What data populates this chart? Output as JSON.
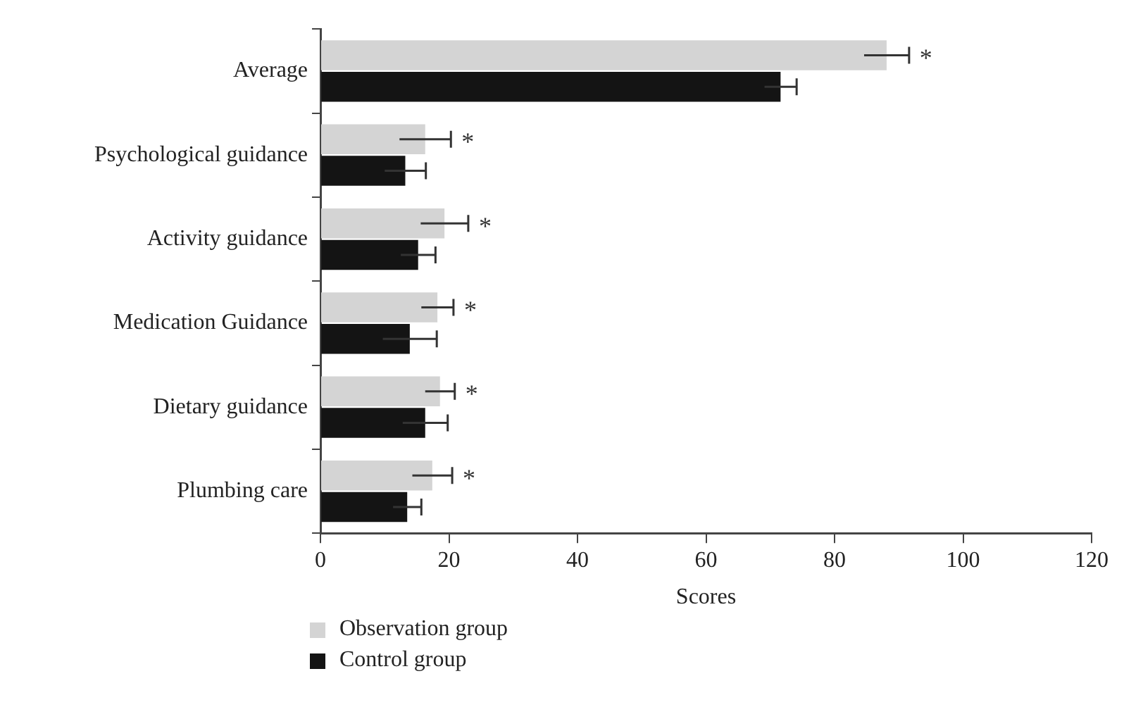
{
  "chart_data": {
    "type": "bar",
    "orientation": "horizontal",
    "xlabel": "Scores",
    "categories": [
      "Average",
      "Psychological guidance",
      "Activity guidance",
      "Medication Guidance",
      "Dietary guidance",
      "Plumbing care"
    ],
    "series": [
      {
        "name": "Observation group",
        "color": "#d4d4d4",
        "values": [
          88.1,
          16.3,
          19.3,
          18.2,
          18.6,
          17.4
        ],
        "errors": [
          3.5,
          4.0,
          3.7,
          2.5,
          2.3,
          3.1
        ]
      },
      {
        "name": "Control group",
        "color": "#141414",
        "values": [
          71.6,
          13.2,
          15.2,
          13.9,
          16.3,
          13.5
        ],
        "errors": [
          2.5,
          3.2,
          2.7,
          4.2,
          3.5,
          2.2
        ]
      }
    ],
    "xlim": [
      0,
      120
    ],
    "xticks": [
      0,
      20,
      40,
      60,
      80,
      100,
      120
    ],
    "grid": false,
    "legend": "bottom left",
    "annotations": [
      "*",
      "*",
      "*",
      "*",
      "*",
      "*"
    ]
  }
}
